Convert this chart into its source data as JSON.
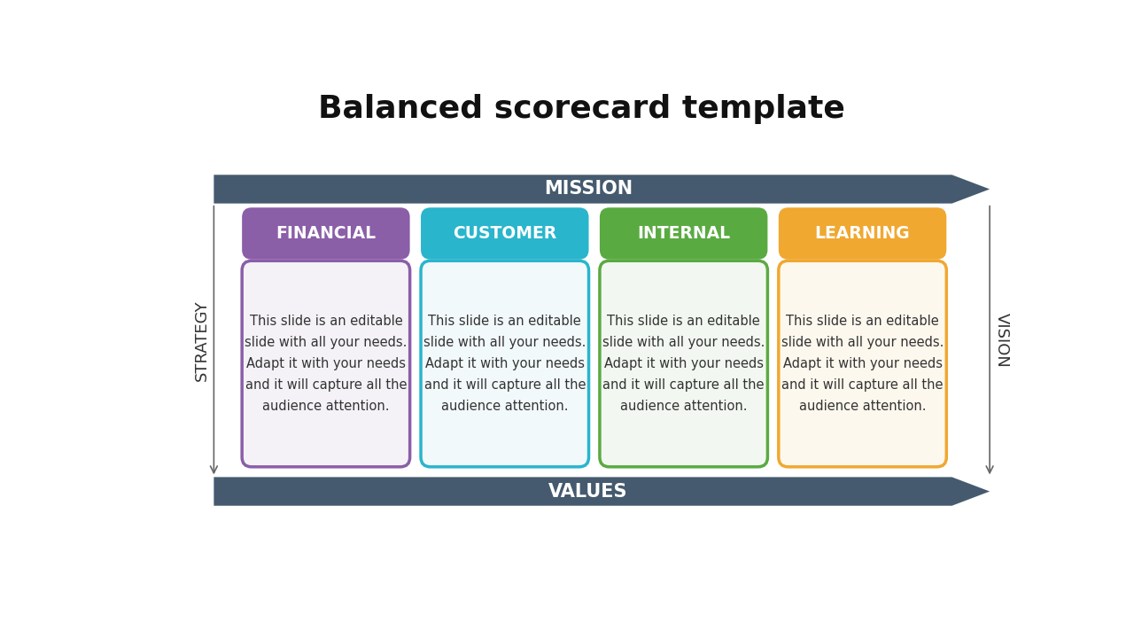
{
  "title": "Balanced scorecard template",
  "title_fontsize": 26,
  "title_fontweight": "bold",
  "background_color": "#ffffff",
  "arrow_color": "#455a6e",
  "mission_label": "MISSION",
  "values_label": "VALUES",
  "strategy_label": "STRATEGY",
  "vision_label": "VISION",
  "side_label_fontsize": 13,
  "arrow_label_fontsize": 15,
  "sections": [
    {
      "header": "FINANCIAL",
      "header_color": "#8b5ea8",
      "border_color": "#8b5ea8",
      "body_color": "#f4f2f7",
      "text": "This slide is an editable\nslide with all your needs.\nAdapt it with your needs\nand it will capture all the\naudience attention."
    },
    {
      "header": "CUSTOMER",
      "header_color": "#29b5cc",
      "border_color": "#29b5cc",
      "body_color": "#f2f9fb",
      "text": "This slide is an editable\nslide with all your needs.\nAdapt it with your needs\nand it will capture all the\naudience attention."
    },
    {
      "header": "INTERNAL",
      "header_color": "#5aaa42",
      "border_color": "#5aaa42",
      "body_color": "#f2f8f1",
      "text": "This slide is an editable\nslide with all your needs.\nAdapt it with your needs\nand it will capture all the\naudience attention."
    },
    {
      "header": "LEARNING",
      "header_color": "#f0a830",
      "border_color": "#f0a830",
      "body_color": "#fdf8ee",
      "text": "This slide is an editable\nslide with all your needs.\nAdapt it with your needs\nand it will capture all the\naudience attention."
    }
  ]
}
